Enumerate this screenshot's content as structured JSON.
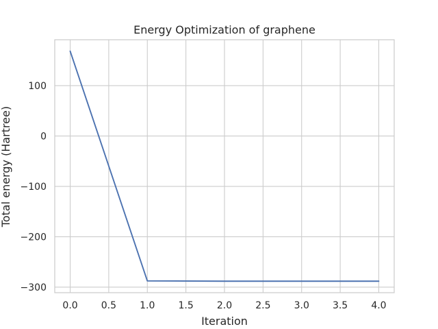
{
  "chart_data": {
    "type": "line",
    "title": "Energy Optimization of graphene",
    "xlabel": "Iteration",
    "ylabel": "Total energy (Hartree)",
    "x": [
      0,
      1,
      2,
      3,
      4
    ],
    "series": [
      {
        "values": [
          168.3,
          -287.6,
          -288.2,
          -288.2,
          -288.2
        ],
        "color": "#4c72b0"
      }
    ],
    "xlim": [
      -0.2,
      4.2
    ],
    "ylim": [
      -311,
      191
    ],
    "x_ticks": [
      0.0,
      0.5,
      1.0,
      1.5,
      2.0,
      2.5,
      3.0,
      3.5,
      4.0
    ],
    "x_tick_labels": [
      "0.0",
      "0.5",
      "1.0",
      "1.5",
      "2.0",
      "2.5",
      "3.0",
      "3.5",
      "4.0"
    ],
    "y_ticks": [
      100,
      0,
      -100,
      -200,
      -300
    ],
    "y_tick_labels": [
      "100",
      "0",
      "−100",
      "−200",
      "−300"
    ],
    "grid": true,
    "legend": false
  }
}
